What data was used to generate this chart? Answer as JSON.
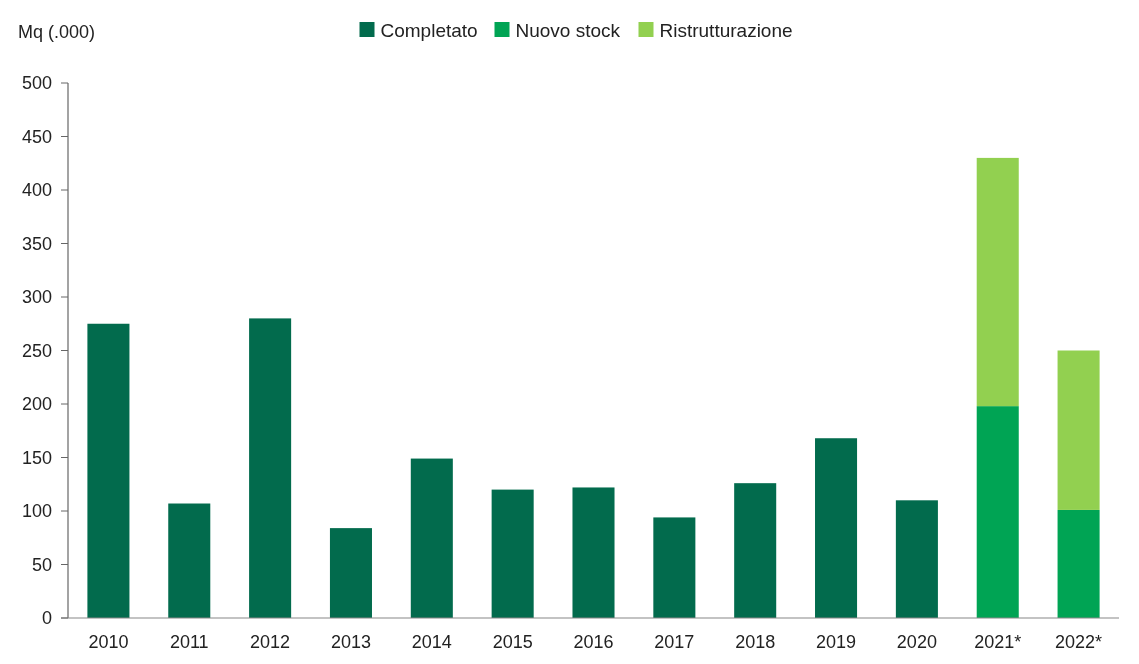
{
  "chart_data": {
    "type": "bar",
    "ylabel": "Mq (.000)",
    "categories": [
      "2010",
      "2011",
      "2012",
      "2013",
      "2014",
      "2015",
      "2016",
      "2017",
      "2018",
      "2019",
      "2020",
      "2021*",
      "2022*"
    ],
    "series": [
      {
        "name": "Completato",
        "color": "#026b4d",
        "values": [
          275,
          107,
          280,
          84,
          149,
          120,
          122,
          94,
          126,
          168,
          110,
          null,
          null
        ]
      },
      {
        "name": "Nuovo stock",
        "color": "#00a454",
        "values": [
          null,
          null,
          null,
          null,
          null,
          null,
          null,
          null,
          null,
          null,
          null,
          198,
          101
        ]
      },
      {
        "name": "Ristrutturazione",
        "color": "#92d050",
        "values": [
          null,
          null,
          null,
          null,
          null,
          null,
          null,
          null,
          null,
          null,
          null,
          232,
          149
        ]
      }
    ],
    "stacked": true,
    "ylim": [
      0,
      500
    ],
    "yticks": [
      0,
      50,
      100,
      150,
      200,
      250,
      300,
      350,
      400,
      450,
      500
    ],
    "grid": false,
    "legend": "top"
  }
}
